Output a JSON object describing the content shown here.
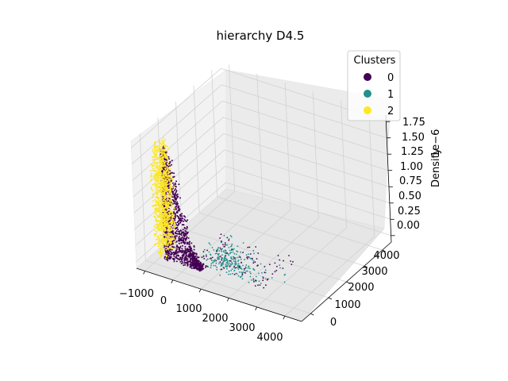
{
  "chart_data": {
    "type": "scatter",
    "projection": "3d",
    "title": "hierarchy D4.5",
    "xlabel": "",
    "ylabel": "",
    "zlabel": "Density",
    "z_offset_label": "1e−6",
    "x_ticks": [
      "−1000",
      "0",
      "1000",
      "2000",
      "3000",
      "4000"
    ],
    "y_ticks": [
      "0",
      "1000",
      "2000",
      "3000",
      "4000"
    ],
    "z_ticks": [
      "0.00",
      "0.25",
      "0.50",
      "0.75",
      "1.00",
      "1.25",
      "1.50",
      "1.75"
    ],
    "xlim": [
      -1300,
      4600
    ],
    "ylim": [
      -500,
      4500
    ],
    "zlim": [
      -0.1,
      1.85
    ],
    "grid": true,
    "legend": {
      "title": "Clusters",
      "placement": "top-right",
      "entries": [
        {
          "label": "0",
          "color": "#440154"
        },
        {
          "label": "1",
          "color": "#21918c"
        },
        {
          "label": "2",
          "color": "#fde725"
        }
      ]
    },
    "series": [
      {
        "cluster": "0",
        "color": "#440154",
        "shape": "dense ridge peaking near density 1.7e-6 at low x, sparse tail toward x≈3000",
        "x_range": [
          -600,
          3000
        ],
        "y_range": [
          0,
          1800
        ],
        "z_range": [
          0.0,
          1.72
        ]
      },
      {
        "cluster": "1",
        "color": "#21918c",
        "shape": "low-density points spread toward larger x and y",
        "x_range": [
          500,
          4600
        ],
        "y_range": [
          0,
          4000
        ],
        "z_range": [
          0.0,
          0.35
        ]
      },
      {
        "cluster": "2",
        "color": "#fde725",
        "shape": "narrow high-density band at the smallest x",
        "x_range": [
          -1000,
          -600
        ],
        "y_range": [
          0,
          800
        ],
        "z_range": [
          0.0,
          1.75
        ]
      }
    ]
  }
}
